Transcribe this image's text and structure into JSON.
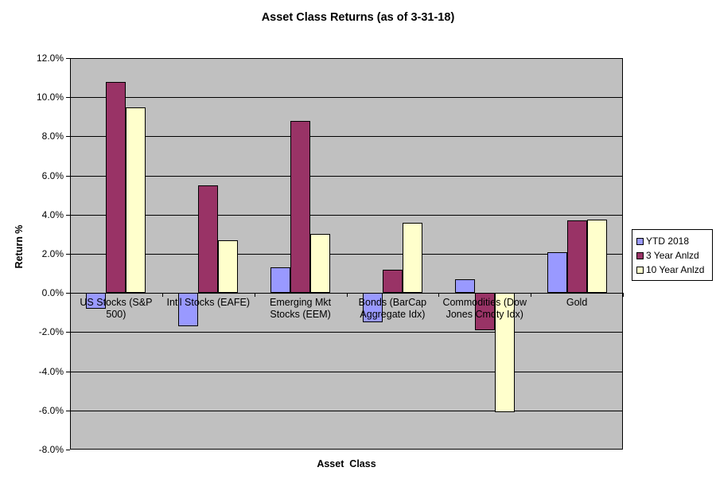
{
  "title": "Asset Class Returns (as of 3-31-18)",
  "chart_data": {
    "type": "bar",
    "title": "Asset Class Returns (as of 3-31-18)",
    "xlabel": "Asset  Class",
    "ylabel": "Return %",
    "ylim": [
      -8,
      12
    ],
    "ytick_values": [
      12,
      10,
      8,
      6,
      4,
      2,
      0,
      -2,
      -4,
      -6,
      -8
    ],
    "ytick_labels": [
      "12.0%",
      "10.0%",
      "8.0%",
      "6.0%",
      "4.0%",
      "2.0%",
      "0.0%",
      "-2.0%",
      "-4.0%",
      "-6.0%",
      "-8.0%"
    ],
    "grid": true,
    "legend_position": "right",
    "plot_background": "#C0C0C0",
    "gridline_color": "#000000",
    "categories": [
      {
        "name": "US Stocks (S&P 500)",
        "lines": [
          "US Stocks (S&P",
          "500)"
        ]
      },
      {
        "name": "Int'l Stocks (EAFE)",
        "lines": [
          "Int'l Stocks (EAFE)"
        ]
      },
      {
        "name": "Emerging Mkt Stocks (EEM)",
        "lines": [
          "Emerging Mkt",
          "Stocks (EEM)"
        ]
      },
      {
        "name": "Bonds (BarCap Aggregate Idx)",
        "lines": [
          "Bonds (BarCap",
          "Aggregate Idx)"
        ]
      },
      {
        "name": "Commodities (Dow Jones Cmdty Idx)",
        "lines": [
          "Commodities (Dow",
          "Jones Cmdty Idx)"
        ]
      },
      {
        "name": "Gold",
        "lines": [
          "Gold"
        ]
      }
    ],
    "series": [
      {
        "name": "YTD 2018",
        "color": "#9999FF",
        "values": [
          -0.8,
          -1.7,
          1.3,
          -1.5,
          0.7,
          2.1
        ]
      },
      {
        "name": "3 Year Anlzd",
        "color": "#993366",
        "values": [
          10.8,
          5.5,
          8.8,
          1.2,
          -1.9,
          3.7
        ]
      },
      {
        "name": "10 Year Anlzd",
        "color": "#FFFFCC",
        "values": [
          9.5,
          2.7,
          3.0,
          3.6,
          -6.1,
          3.75
        ]
      }
    ]
  }
}
